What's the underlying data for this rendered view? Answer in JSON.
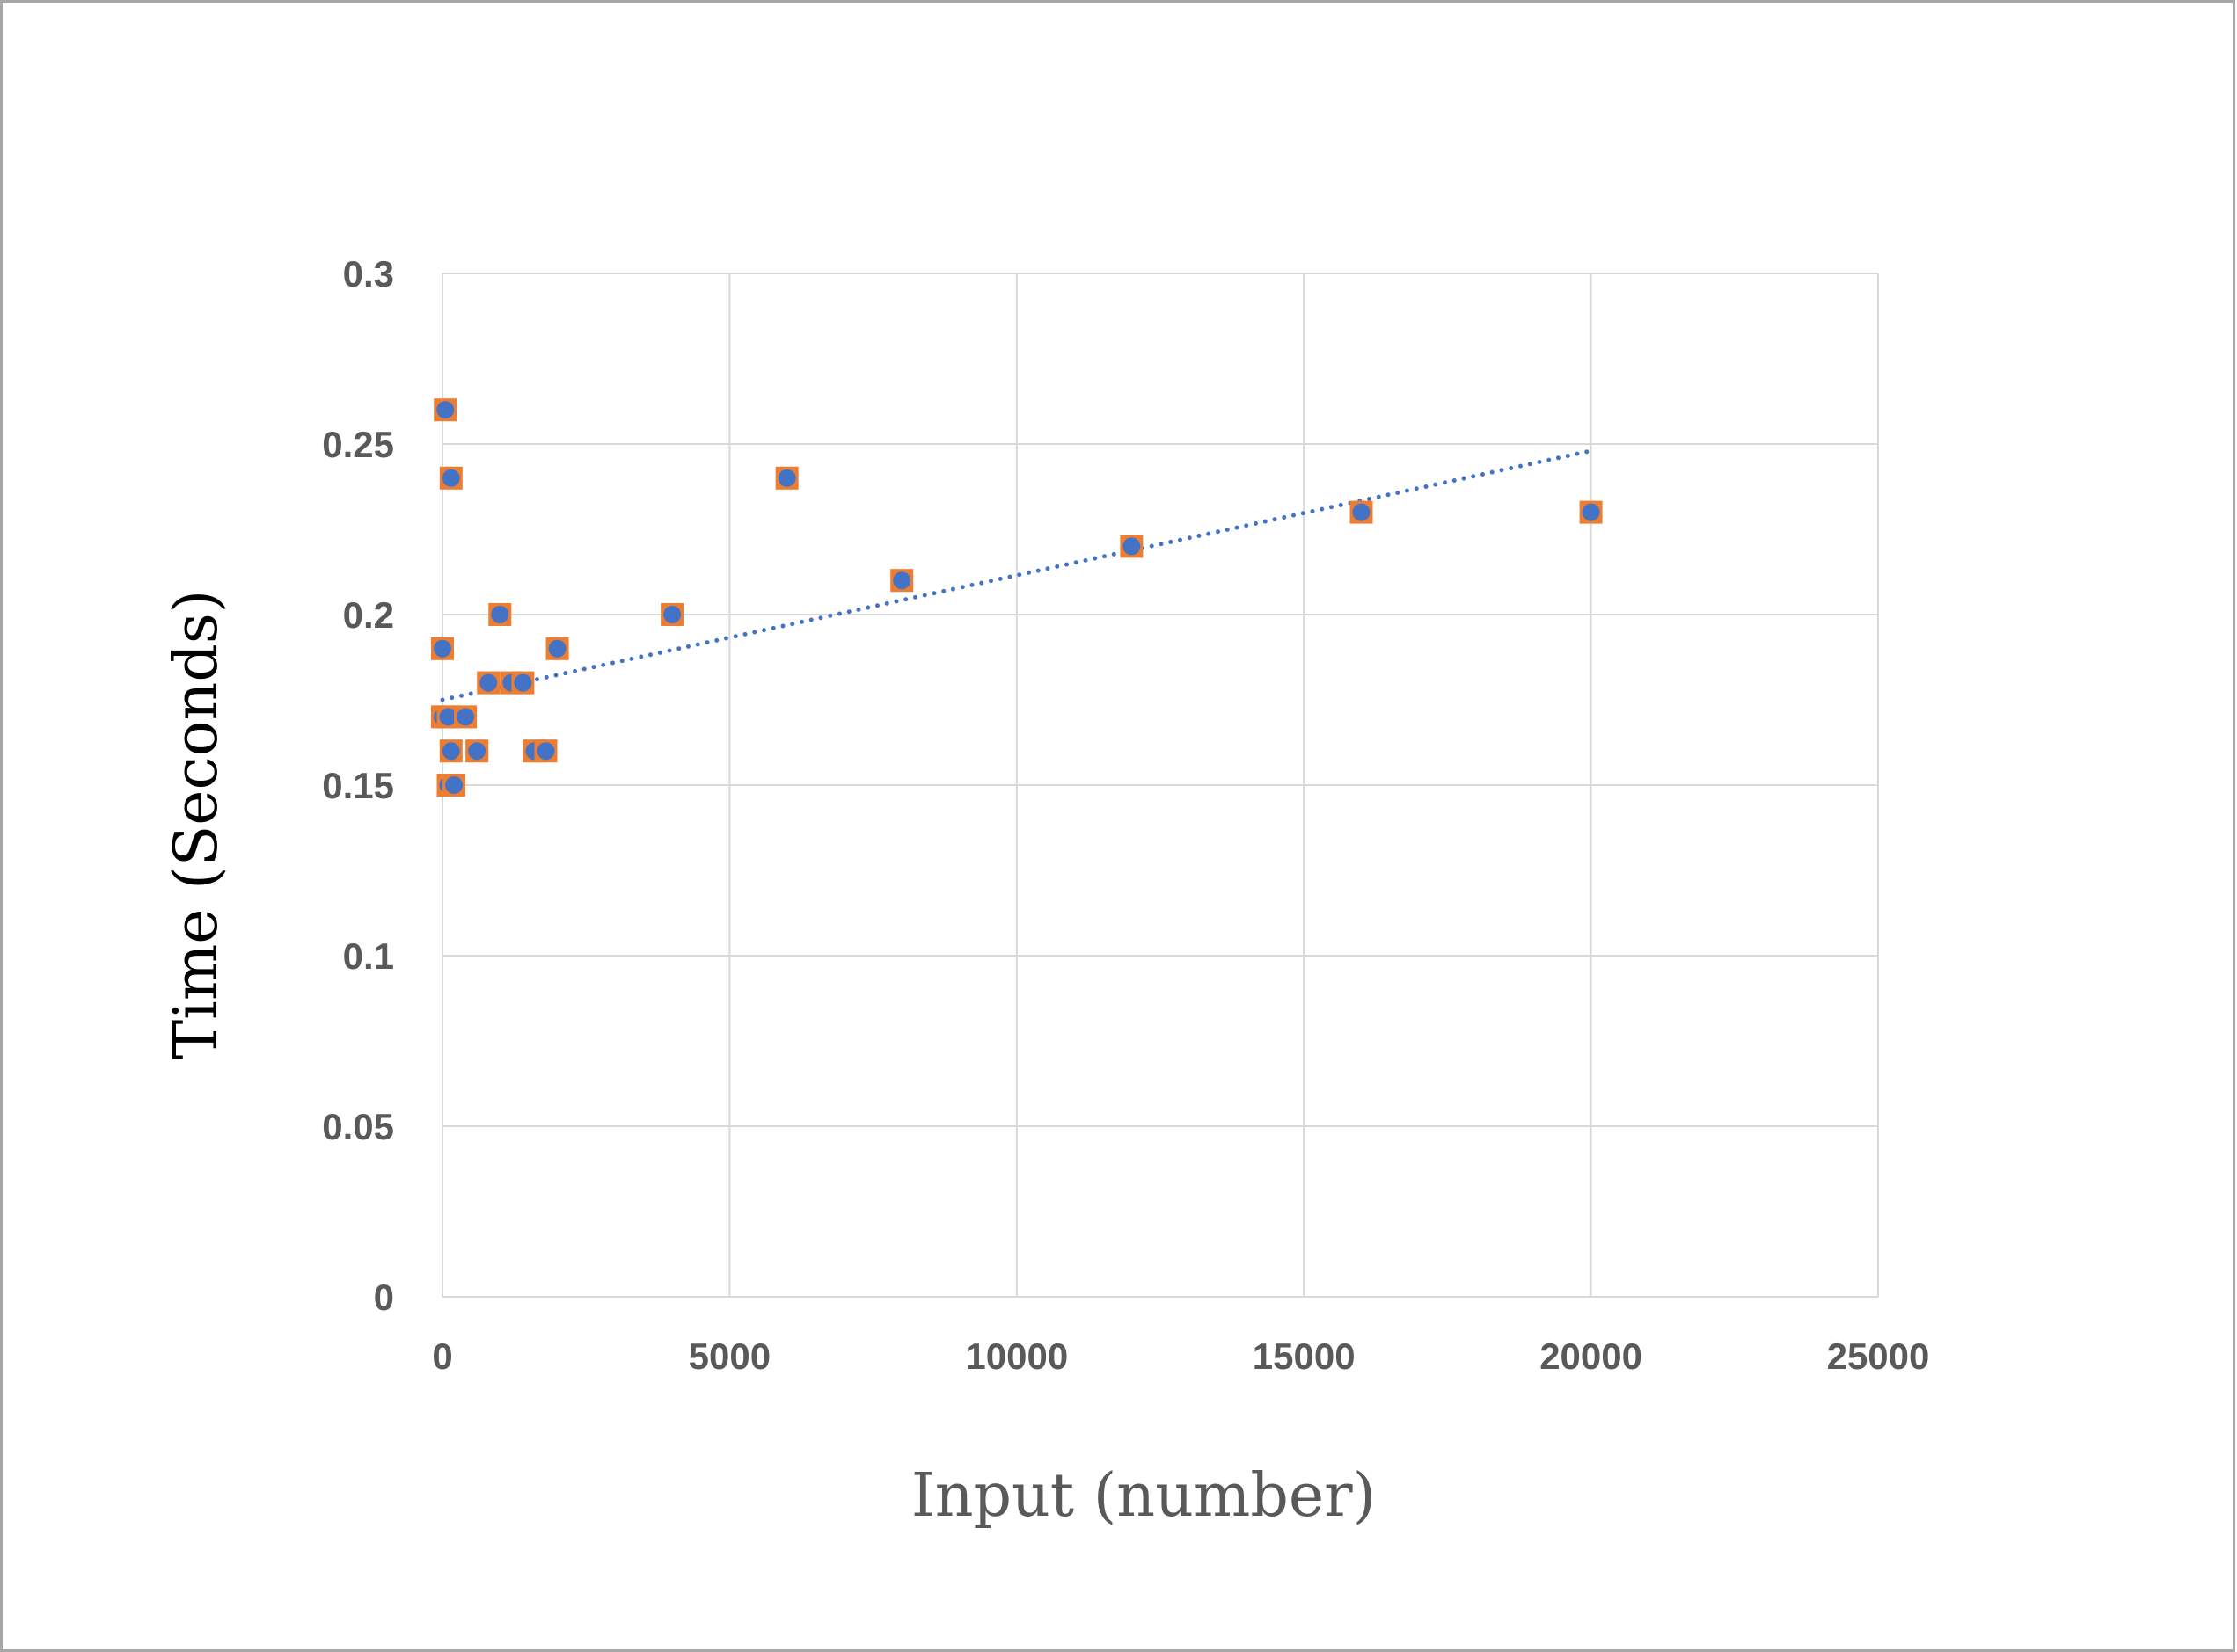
{
  "chart_data": {
    "type": "scatter",
    "xlabel": "Input (number)",
    "ylabel": "Time (Seconds)",
    "xlim": [
      0,
      25000
    ],
    "ylim": [
      0,
      0.3
    ],
    "x_ticks": [
      "0",
      "5000",
      "10000",
      "15000",
      "20000",
      "25000"
    ],
    "y_ticks": [
      "0",
      "0.05",
      "0.1",
      "0.15",
      "0.2",
      "0.25",
      "0.3"
    ],
    "grid": true,
    "legend": "none",
    "marker_fill": "#4472c4",
    "marker_outline": "#ed7d31",
    "trendline_color": "#4472c4",
    "series": [
      {
        "points": [
          {
            "x": 0,
            "y": 0.19
          },
          {
            "x": 0,
            "y": 0.17
          },
          {
            "x": 50,
            "y": 0.26
          },
          {
            "x": 100,
            "y": 0.17
          },
          {
            "x": 100,
            "y": 0.15
          },
          {
            "x": 150,
            "y": 0.16
          },
          {
            "x": 150,
            "y": 0.24
          },
          {
            "x": 200,
            "y": 0.15
          },
          {
            "x": 400,
            "y": 0.17
          },
          {
            "x": 600,
            "y": 0.16
          },
          {
            "x": 800,
            "y": 0.18
          },
          {
            "x": 1000,
            "y": 0.2
          },
          {
            "x": 1200,
            "y": 0.18
          },
          {
            "x": 1400,
            "y": 0.18
          },
          {
            "x": 1600,
            "y": 0.16
          },
          {
            "x": 1800,
            "y": 0.16
          },
          {
            "x": 2000,
            "y": 0.19
          },
          {
            "x": 4000,
            "y": 0.2
          },
          {
            "x": 6000,
            "y": 0.24
          },
          {
            "x": 8000,
            "y": 0.21
          },
          {
            "x": 12000,
            "y": 0.22
          },
          {
            "x": 16000,
            "y": 0.23
          },
          {
            "x": 20000,
            "y": 0.23
          }
        ]
      }
    ],
    "trendline": {
      "type": "linear",
      "style": "dotted",
      "x_range": [
        0,
        20000
      ],
      "y_start": 0.175,
      "y_end": 0.248
    }
  }
}
